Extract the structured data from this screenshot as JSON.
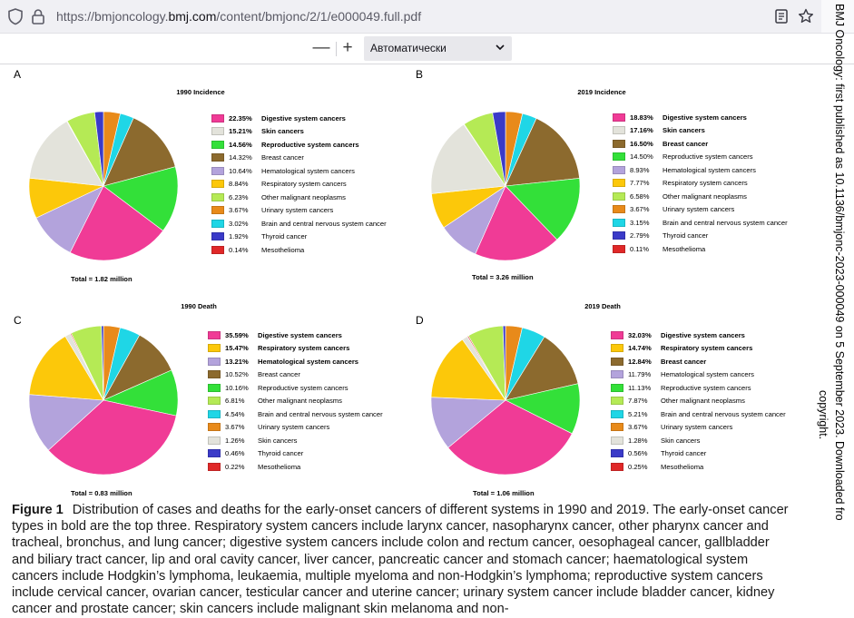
{
  "browser": {
    "url_prefix": "https://bmjoncology.",
    "url_domain": "bmj.com",
    "url_path": "/content/bmjonc/2/1/e000049.full.pdf",
    "icons": [
      "shield-icon",
      "lock-icon",
      "reader-mode-icon",
      "bookmark-star-icon"
    ]
  },
  "pdf_toolbar": {
    "zoom_out": "—",
    "zoom_in": "+",
    "zoom_value": "Автоматически"
  },
  "side_note": "BMJ Oncology: first published as 10.1136/bmjonc-2023-000049 on 5 September 2023. Downloaded fro",
  "side_note_2": "copyright.",
  "figure": {
    "caption_label": "Figure 1",
    "caption_text": "Distribution of cases and deaths for the early-onset cancers of different systems in 1990 and 2019. The early-onset cancer types in bold are the top three. Respiratory system cancers include larynx cancer, nasopharynx cancer, other pharynx cancer and tracheal, bronchus, and lung cancer; digestive system cancers include colon and rectum cancer, oesophageal cancer, gallbladder and biliary tract cancer, lip and oral cavity cancer, liver cancer, pancreatic cancer and stomach cancer; haematological system cancers include Hodgkin’s lymphoma, leukaemia, multiple myeloma and non-Hodgkin’s lymphoma; reproductive system cancers include cervical cancer, ovarian cancer, testicular cancer and uterine cancer; urinary system cancer include bladder cancer, kidney cancer and prostate cancer; skin cancers include malignant skin melanoma and non-"
  },
  "colors": {
    "Digestive system cancers": "#f03b96",
    "Skin cancers": "#e3e3db",
    "Reproductive system cancers": "#33e039",
    "Breast cancer": "#8c6a2e",
    "Hematological system cancers": "#b3a3dc",
    "Respiratory system cancers": "#fcc80a",
    "Other malignant neoplasms": "#b5ea55",
    "Urinary system cancers": "#e88a1a",
    "Brain and central nervous system cancer": "#1fd6e6",
    "Thyroid cancer": "#3a3ac8",
    "Mesothelioma": "#e02828"
  },
  "chart_data": [
    {
      "panel": "A",
      "type": "pie",
      "title": "1990 Incidence",
      "total": "Total = 1.82 million",
      "slices": [
        {
          "label": "Digestive system cancers",
          "pct_text": "22.35%",
          "value": 22.35,
          "bold": true
        },
        {
          "label": "Skin cancers",
          "pct_text": "15.21%",
          "value": 15.21,
          "bold": true
        },
        {
          "label": "Reproductive system cancers",
          "pct_text": "14.56%",
          "value": 14.56,
          "bold": true
        },
        {
          "label": "Breast cancer",
          "pct_text": "14.32%",
          "value": 14.32,
          "bold": false
        },
        {
          "label": "Hematological system cancers",
          "pct_text": "10.64%",
          "value": 10.64,
          "bold": false
        },
        {
          "label": "Respiratory system cancers",
          "pct_text": "8.84%",
          "value": 8.84,
          "bold": false
        },
        {
          "label": "Other malignant neoplasms",
          "pct_text": "6.23%",
          "value": 6.23,
          "bold": false
        },
        {
          "label": "Urinary system cancers",
          "pct_text": "3.67%",
          "value": 3.67,
          "bold": false
        },
        {
          "label": "Brain and central nervous system cancer",
          "pct_text": "3.02%",
          "value": 3.02,
          "bold": false
        },
        {
          "label": "Thyroid cancer",
          "pct_text": "1.92%",
          "value": 1.92,
          "bold": false
        },
        {
          "label": "Mesothelioma",
          "pct_text": "0.14%",
          "value": 0.14,
          "bold": false
        }
      ],
      "pie_order": [
        "Urinary system cancers",
        "Brain and central nervous system cancer",
        "Breast cancer",
        "Reproductive system cancers",
        "Digestive system cancers",
        "Hematological system cancers",
        "Respiratory system cancers",
        "Skin cancers",
        "Mesothelioma",
        "Other malignant neoplasms",
        "Thyroid cancer"
      ]
    },
    {
      "panel": "B",
      "type": "pie",
      "title": "2019 Incidence",
      "total": "Total = 3.26 million",
      "slices": [
        {
          "label": "Digestive system cancers",
          "pct_text": "18.83%",
          "value": 18.83,
          "bold": true
        },
        {
          "label": "Skin cancers",
          "pct_text": "17.16%",
          "value": 17.16,
          "bold": true
        },
        {
          "label": "Breast cancer",
          "pct_text": "16.50%",
          "value": 16.5,
          "bold": true
        },
        {
          "label": "Reproductive system cancers",
          "pct_text": "14.50%",
          "value": 14.5,
          "bold": false
        },
        {
          "label": "Hematological system cancers",
          "pct_text": "8.93%",
          "value": 8.93,
          "bold": false
        },
        {
          "label": "Respiratory system cancers",
          "pct_text": "7.77%",
          "value": 7.77,
          "bold": false
        },
        {
          "label": "Other malignant neoplasms",
          "pct_text": "6.58%",
          "value": 6.58,
          "bold": false
        },
        {
          "label": "Urinary system cancers",
          "pct_text": "3.67%",
          "value": 3.67,
          "bold": false
        },
        {
          "label": "Brain and central nervous system cancer",
          "pct_text": "3.15%",
          "value": 3.15,
          "bold": false
        },
        {
          "label": "Thyroid cancer",
          "pct_text": "2.79%",
          "value": 2.79,
          "bold": false
        },
        {
          "label": "Mesothelioma",
          "pct_text": "0.11%",
          "value": 0.11,
          "bold": false
        }
      ],
      "pie_order": [
        "Urinary system cancers",
        "Brain and central nervous system cancer",
        "Breast cancer",
        "Reproductive system cancers",
        "Digestive system cancers",
        "Hematological system cancers",
        "Respiratory system cancers",
        "Skin cancers",
        "Mesothelioma",
        "Other malignant neoplasms",
        "Thyroid cancer"
      ]
    },
    {
      "panel": "C",
      "type": "pie",
      "title": "1990 Death",
      "total": "Total = 0.83 million",
      "slices": [
        {
          "label": "Digestive system cancers",
          "pct_text": "35.59%",
          "value": 35.59,
          "bold": true
        },
        {
          "label": "Respiratory system cancers",
          "pct_text": "15.47%",
          "value": 15.47,
          "bold": true
        },
        {
          "label": "Hematological system cancers",
          "pct_text": "13.21%",
          "value": 13.21,
          "bold": true
        },
        {
          "label": "Breast cancer",
          "pct_text": "10.52%",
          "value": 10.52,
          "bold": false
        },
        {
          "label": "Reproductive system cancers",
          "pct_text": "10.16%",
          "value": 10.16,
          "bold": false
        },
        {
          "label": "Other malignant neoplasms",
          "pct_text": "6.81%",
          "value": 6.81,
          "bold": false
        },
        {
          "label": "Brain and central nervous system cancer",
          "pct_text": "4.54%",
          "value": 4.54,
          "bold": false
        },
        {
          "label": "Urinary system cancers",
          "pct_text": "3.67%",
          "value": 3.67,
          "bold": false
        },
        {
          "label": "Skin cancers",
          "pct_text": "1.26%",
          "value": 1.26,
          "bold": false
        },
        {
          "label": "Thyroid cancer",
          "pct_text": "0.46%",
          "value": 0.46,
          "bold": false
        },
        {
          "label": "Mesothelioma",
          "pct_text": "0.22%",
          "value": 0.22,
          "bold": false
        }
      ],
      "pie_order": [
        "Urinary system cancers",
        "Brain and central nervous system cancer",
        "Breast cancer",
        "Reproductive system cancers",
        "Digestive system cancers",
        "Hematological system cancers",
        "Respiratory system cancers",
        "Skin cancers",
        "Mesothelioma",
        "Other malignant neoplasms",
        "Thyroid cancer"
      ]
    },
    {
      "panel": "D",
      "type": "pie",
      "title": "2019 Death",
      "total": "Total = 1.06 million",
      "slices": [
        {
          "label": "Digestive system cancers",
          "pct_text": "32.03%",
          "value": 32.03,
          "bold": true
        },
        {
          "label": "Respiratory system cancers",
          "pct_text": "14.74%",
          "value": 14.74,
          "bold": true
        },
        {
          "label": "Breast cancer",
          "pct_text": "12.84%",
          "value": 12.84,
          "bold": true
        },
        {
          "label": "Hematological system cancers",
          "pct_text": "11.79%",
          "value": 11.79,
          "bold": false
        },
        {
          "label": "Reproductive system cancers",
          "pct_text": "11.13%",
          "value": 11.13,
          "bold": false
        },
        {
          "label": "Other malignant neoplasms",
          "pct_text": "7.87%",
          "value": 7.87,
          "bold": false
        },
        {
          "label": "Brain and central nervous system cancer",
          "pct_text": "5.21%",
          "value": 5.21,
          "bold": false
        },
        {
          "label": "Urinary system cancers",
          "pct_text": "3.67%",
          "value": 3.67,
          "bold": false
        },
        {
          "label": "Skin cancers",
          "pct_text": "1.28%",
          "value": 1.28,
          "bold": false
        },
        {
          "label": "Thyroid cancer",
          "pct_text": "0.56%",
          "value": 0.56,
          "bold": false
        },
        {
          "label": "Mesothelioma",
          "pct_text": "0.25%",
          "value": 0.25,
          "bold": false
        }
      ],
      "pie_order": [
        "Urinary system cancers",
        "Brain and central nervous system cancer",
        "Breast cancer",
        "Reproductive system cancers",
        "Digestive system cancers",
        "Hematological system cancers",
        "Respiratory system cancers",
        "Skin cancers",
        "Mesothelioma",
        "Other malignant neoplasms",
        "Thyroid cancer"
      ]
    }
  ]
}
